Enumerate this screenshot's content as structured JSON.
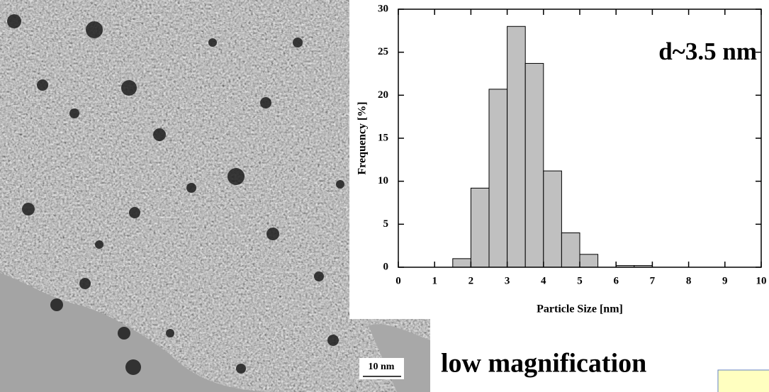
{
  "chart_data": {
    "type": "histogram",
    "ylabel": "Frequency [%]",
    "xlabel": "Particle Size [nm]",
    "annotation": "d~3.5 nm",
    "bins": [
      0,
      0.5,
      1,
      1.5,
      2,
      2.5,
      3,
      3.5,
      4,
      4.5,
      5,
      5.5,
      6,
      6.5,
      7,
      7.5,
      8,
      8.5,
      9,
      9.5,
      10
    ],
    "values": [
      0,
      0,
      0,
      1,
      9.2,
      20.7,
      28,
      23.7,
      11.2,
      4,
      1.5,
      0,
      0.2,
      0.2,
      0,
      0,
      0,
      0,
      0,
      0
    ],
    "color": "#c0c0c0",
    "xlim": [
      0,
      10
    ],
    "xticks": [
      0,
      1,
      2,
      3,
      4,
      5,
      6,
      7,
      8,
      9,
      10
    ],
    "ylim": [
      0,
      30
    ],
    "yticks": [
      0,
      5,
      10,
      15,
      20,
      25,
      30
    ]
  },
  "image": {
    "scale_bar": "10 nm"
  },
  "caption": "low magnification"
}
